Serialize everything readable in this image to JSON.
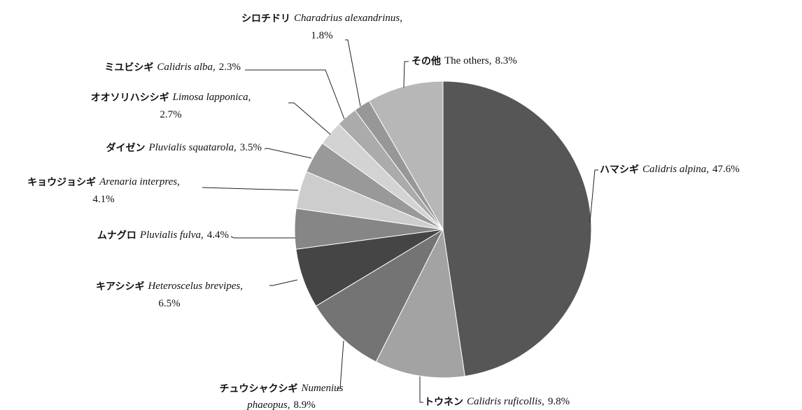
{
  "chart_data": {
    "type": "pie",
    "categories": [
      "ハマシギ",
      "トウネン",
      "チュウシャクシギ",
      "キアシシギ",
      "ムナグロ",
      "キョウジョシギ",
      "ダイゼン",
      "オオソリハシシギ",
      "ミユビシギ",
      "シロチドリ",
      "その他"
    ],
    "latin_names": [
      "Calidris alpina",
      "Calidris ruficollis",
      "Numenius phaeopus",
      "Heteroscelus brevipes",
      "Pluvialis fulva",
      "Arenaria interpres",
      "Pluvialis squatarola",
      "Limosa lapponica",
      "Calidris alba",
      "Charadrius alexandrinus",
      "The others"
    ],
    "label_separator": ",",
    "values": [
      47.6,
      9.8,
      8.9,
      6.5,
      4.4,
      4.1,
      3.5,
      2.7,
      2.3,
      1.8,
      8.3
    ],
    "value_labels": [
      "47.6%",
      "9.8%",
      "8.9%",
      "6.5%",
      "4.4%",
      "4.1%",
      "3.5%",
      "2.7%",
      "2.3%",
      "1.8%",
      "8.3%"
    ],
    "colors": [
      "#565656",
      "#a3a3a3",
      "#747474",
      "#454545",
      "#868686",
      "#cdcdcd",
      "#999999",
      "#d3d3d3",
      "#ababab",
      "#979797",
      "#b7b7b7"
    ]
  }
}
